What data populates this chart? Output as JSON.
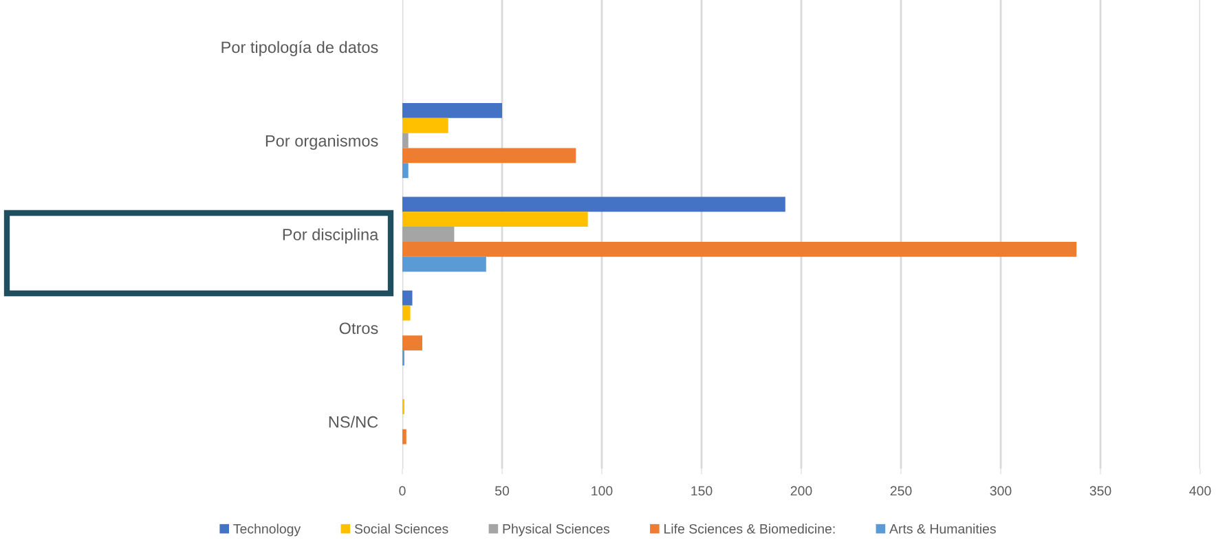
{
  "chart_data": {
    "type": "bar",
    "orientation": "horizontal",
    "categories": [
      "Por tipología de datos",
      "Por organismos",
      "Por disciplina",
      "Otros",
      "NS/NC"
    ],
    "series": [
      {
        "name": "Technology",
        "color": "#4472c4",
        "values": [
          0,
          50,
          192,
          5,
          0
        ]
      },
      {
        "name": "Social Sciences",
        "color": "#ffc000",
        "values": [
          0,
          23,
          93,
          4,
          1
        ]
      },
      {
        "name": "Physical Sciences",
        "color": "#a5a5a5",
        "values": [
          0,
          3,
          26,
          0,
          0
        ]
      },
      {
        "name": "Life Sciences & Biomedicine:",
        "color": "#ed7d31",
        "values": [
          0,
          87,
          338,
          10,
          2
        ]
      },
      {
        "name": "Arts & Humanities",
        "color": "#5b9bd5",
        "values": [
          0,
          3,
          42,
          1,
          0
        ]
      }
    ],
    "xlim": [
      0,
      400
    ],
    "xticks": [
      0,
      50,
      100,
      150,
      200,
      250,
      300,
      350,
      400
    ],
    "grid": "x",
    "legend": "bottom"
  }
}
